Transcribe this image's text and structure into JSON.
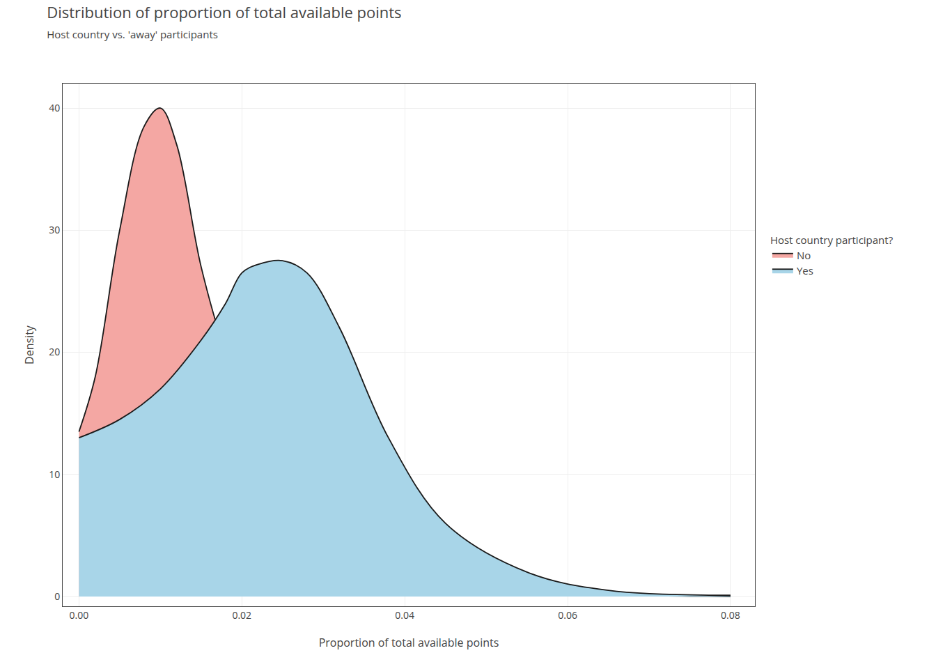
{
  "chart_data": {
    "type": "area",
    "title": "Distribution of proportion of total available points",
    "subtitle": "Host country vs. 'away' participants",
    "x_label": "Proportion of total available points",
    "y_label": "Density",
    "legend_title": "Host country participant?",
    "legend": "right",
    "grid": true,
    "xlim": [
      -0.002,
      0.083
    ],
    "ylim": [
      -0.8,
      42
    ],
    "xticks": [
      {
        "value": 0,
        "label": "0.00"
      },
      0.02,
      0.04,
      0.06,
      0.08
    ],
    "yticks": [
      0,
      10,
      20,
      30,
      40
    ],
    "series": [
      {
        "name": "No",
        "color": "#F4A7A3",
        "x": [
          0.0,
          0.002,
          0.005,
          0.008,
          0.01,
          0.012,
          0.015,
          0.018,
          0.022,
          0.03,
          0.04,
          0.05,
          0.06,
          0.07,
          0.08
        ],
        "values": [
          13.5,
          18.0,
          30.0,
          38.5,
          40.0,
          37.0,
          27.0,
          20.0,
          13.5,
          6.5,
          2.5,
          1.0,
          0.4,
          0.1,
          0.0
        ]
      },
      {
        "name": "Yes",
        "color": "#A8D5E8",
        "x": [
          0.0,
          0.005,
          0.01,
          0.015,
          0.018,
          0.02,
          0.022,
          0.025,
          0.028,
          0.032,
          0.038,
          0.045,
          0.055,
          0.065,
          0.08
        ],
        "values": [
          13.0,
          14.5,
          17.0,
          21.0,
          24.0,
          26.5,
          27.2,
          27.5,
          26.5,
          22.0,
          13.0,
          6.0,
          2.0,
          0.5,
          0.1
        ]
      }
    ]
  }
}
